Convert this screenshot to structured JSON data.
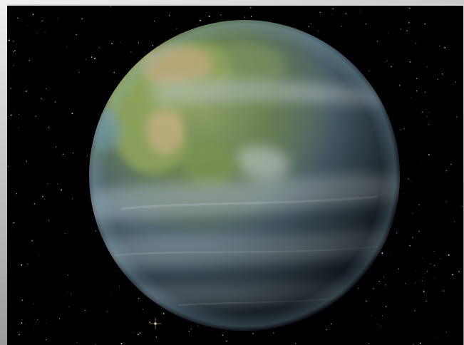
{
  "image": {
    "subject_icon": "planet-icon",
    "background_color": "#000000",
    "frame_color": "#b9b9b9",
    "planet_palette": {
      "ocean": "#3c5a6a",
      "land": "#7c9a4b",
      "desert": "#c2a87a",
      "cloud": "#9eb0b8",
      "shadow": "#111820"
    }
  }
}
